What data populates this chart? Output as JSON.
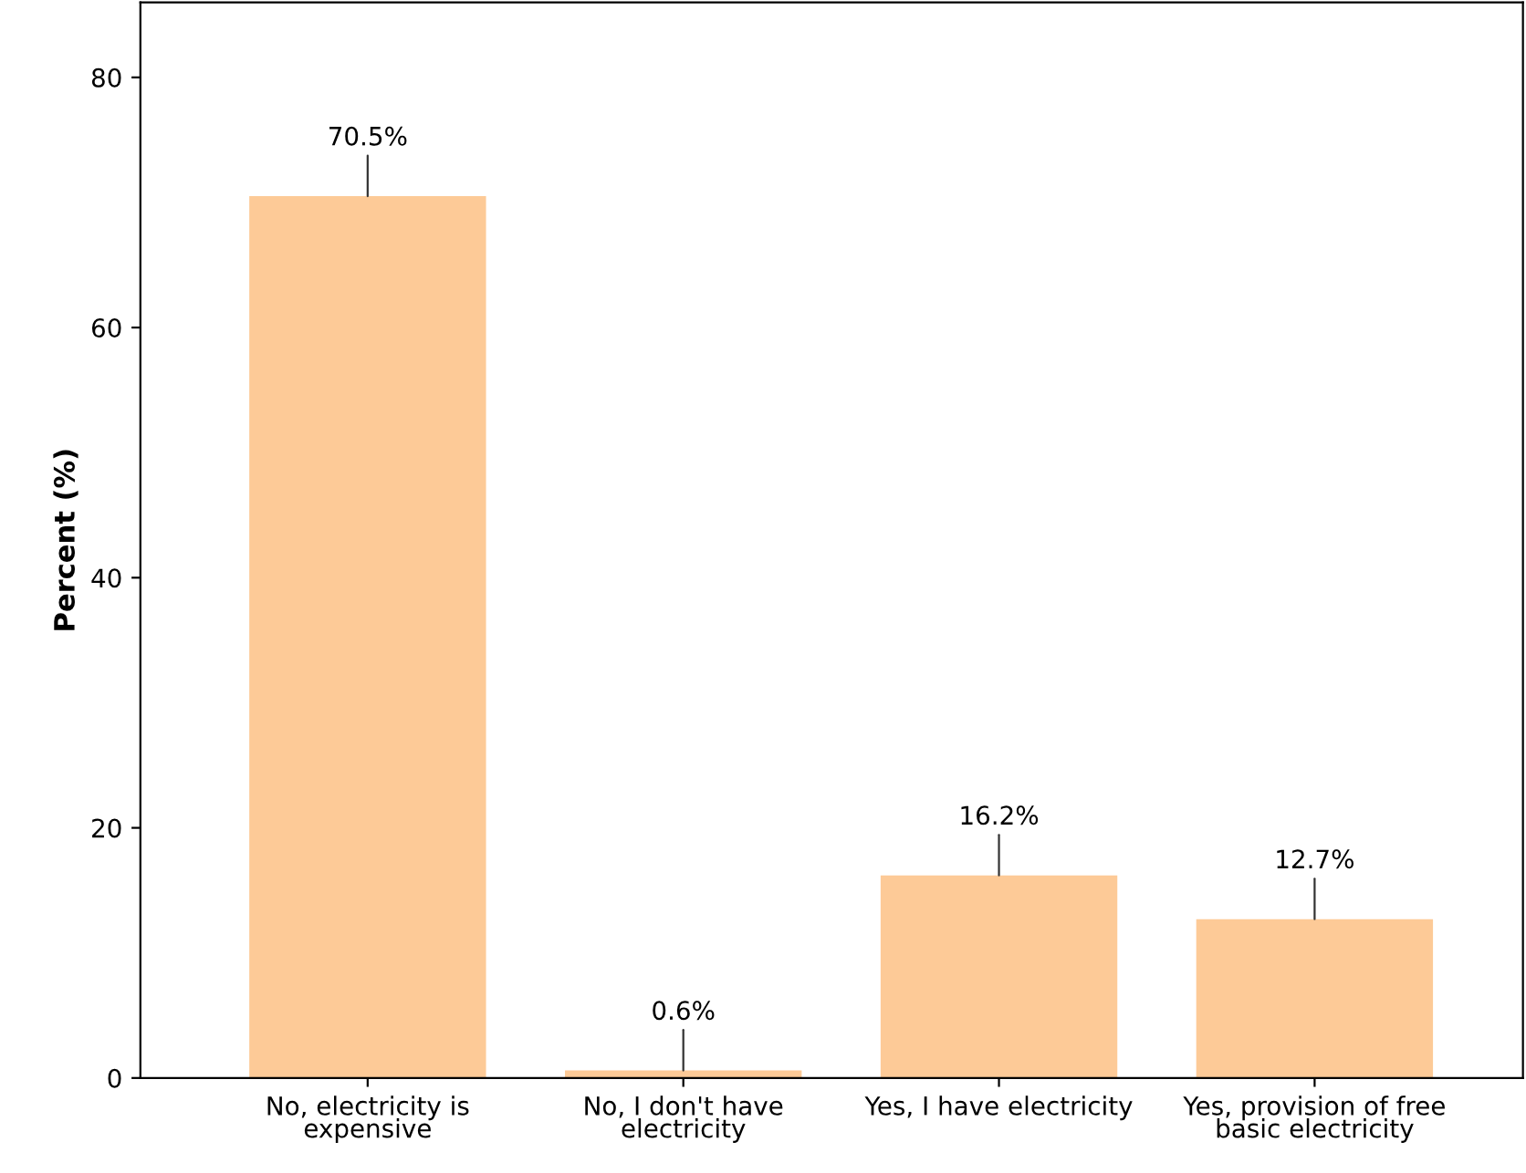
{
  "chart_data": {
    "type": "bar",
    "ylabel": "Percent (%)",
    "categories": [
      "No, electricity is\nexpensive",
      "No, I don't have\nelectricity",
      "Yes, I have electricity",
      "Yes, provision of free\nbasic electricity"
    ],
    "values": [
      70.5,
      0.6,
      16.2,
      12.7
    ],
    "value_labels": [
      "70.5%",
      "0.6%",
      "16.2%",
      "12.7%"
    ],
    "color": "#fdca97",
    "ylim": [
      0,
      86
    ],
    "yticks": [
      0,
      20,
      40,
      60,
      80
    ],
    "grid": false
  }
}
